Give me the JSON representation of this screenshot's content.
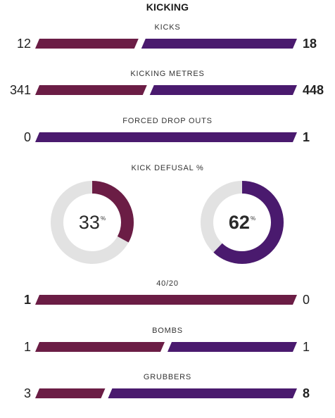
{
  "title": "KICKING",
  "colors": {
    "home": "#6b1d45",
    "away": "#4a1a6e",
    "track": "#e2e2e2"
  },
  "stats": [
    {
      "label": "KICKS",
      "left": "12",
      "right": "18",
      "left_value": 12,
      "right_value": 18,
      "leader": "right"
    },
    {
      "label": "KICKING METRES",
      "left": "341",
      "right": "448",
      "left_value": 341,
      "right_value": 448,
      "leader": "right"
    },
    {
      "label": "FORCED DROP OUTS",
      "left": "0",
      "right": "1",
      "left_value": 0,
      "right_value": 1,
      "leader": "right"
    },
    {
      "label": "40/20",
      "left": "1",
      "right": "0",
      "left_value": 1,
      "right_value": 0,
      "leader": "left"
    },
    {
      "label": "BOMBS",
      "left": "1",
      "right": "1",
      "left_value": 1,
      "right_value": 1,
      "leader": "none"
    },
    {
      "label": "GRUBBERS",
      "left": "3",
      "right": "8",
      "left_value": 3,
      "right_value": 8,
      "leader": "right"
    }
  ],
  "kick_defusal": {
    "label": "KICK DEFUSAL %",
    "home": {
      "value": "33",
      "percent": 33
    },
    "away": {
      "value": "62",
      "percent": 62
    },
    "unit": "%",
    "leader": "away"
  }
}
